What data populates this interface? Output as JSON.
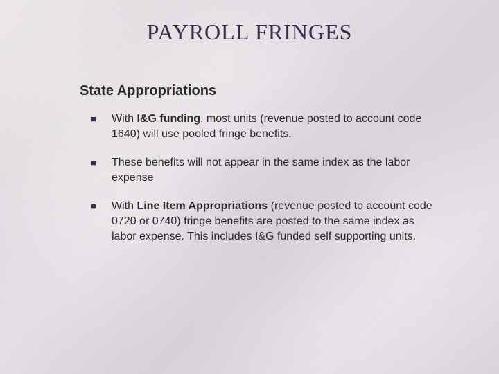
{
  "slide": {
    "title": "PAYROLL FRINGES",
    "subheading": "State Appropriations",
    "bullets": [
      {
        "pre": "With ",
        "bold1": "I&G funding",
        "mid": ", most units (revenue posted to account code 1640) will use pooled fringe benefits.",
        "bold2": "",
        "post": ""
      },
      {
        "pre": "These benefits will not appear in the same index as the labor expense",
        "bold1": "",
        "mid": "",
        "bold2": "",
        "post": ""
      },
      {
        "pre": "With ",
        "bold1": "Line Item Appropriations",
        "mid": " (revenue posted to account code 0720 or 0740) fringe benefits are posted to the same index as labor expense.  This includes I&G funded self supporting units.",
        "bold2": "",
        "post": ""
      }
    ]
  },
  "style": {
    "title_color": "#3b2a4a",
    "title_fontsize": 32,
    "subheading_fontsize": 20,
    "body_fontsize": 16,
    "text_color": "#2a2a2a",
    "bullet_marker": "■",
    "background_base": "#e0dae0"
  }
}
